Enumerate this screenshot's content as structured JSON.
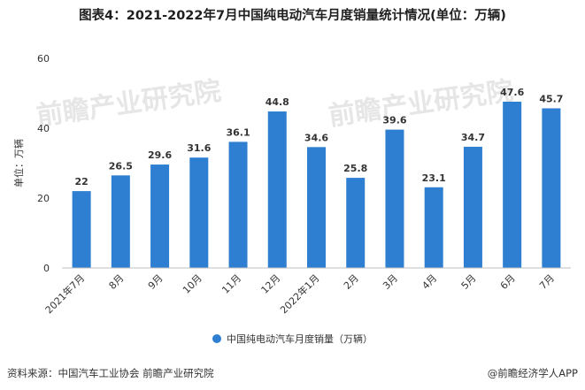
{
  "title": "图表4：2021-2022年7月中国纯电动汽车月度销量统计情况(单位：万辆)",
  "source": "资料来源：中国汽车工业协会 前瞻产业研究院",
  "credit": "@前瞻经济学人APP",
  "watermark": "前瞻产业研究院",
  "colors": {
    "bar": "#2e7fd1",
    "axis": "#bfbfbf",
    "text": "#333333"
  },
  "chart_data": {
    "type": "bar",
    "categories": [
      "2021年7月",
      "8月",
      "9月",
      "10月",
      "11月",
      "12月",
      "2022年1月",
      "2月",
      "3月",
      "4月",
      "5月",
      "6月",
      "7月"
    ],
    "series": [
      {
        "name": "中国纯电动汽车月度销量（万辆）",
        "values": [
          22,
          26.5,
          29.6,
          31.6,
          36.1,
          44.8,
          34.6,
          25.8,
          39.6,
          23.1,
          34.7,
          47.6,
          45.7
        ]
      }
    ],
    "value_labels": [
      "22",
      "26.5",
      "29.6",
      "31.6",
      "36.1",
      "44.8",
      "34.6",
      "25.8",
      "39.6",
      "23.1",
      "34.7",
      "47.6",
      "45.7"
    ],
    "ylabel": "单位：万辆",
    "ylim": [
      0,
      60
    ],
    "yticks": [
      0,
      20,
      40,
      60
    ],
    "grid": false,
    "legend_position": "bottom"
  }
}
